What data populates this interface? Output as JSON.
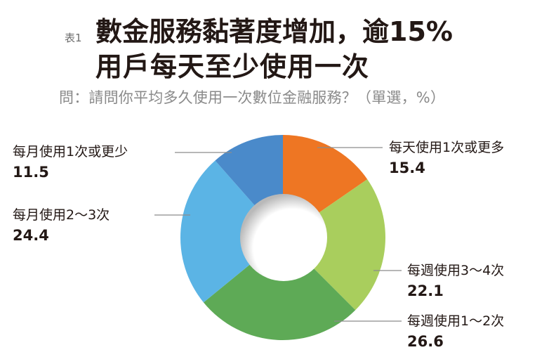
{
  "header": {
    "table_tag": "表1",
    "title_line1": "數金服務黏著度增加，逾15%",
    "title_line2": "用戶每天至少使用一次",
    "subtitle": "問：請問你平均多久使用一次數位金融服務？（單選，%）"
  },
  "chart_data": {
    "type": "pie",
    "variant": "donut",
    "title": "數金服務黏著度增加，逾15%用戶每天至少使用一次",
    "subtitle": "問：請問你平均多久使用一次數位金融服務？（單選，%）",
    "unit": "%",
    "start_angle": "12 o'clock, clockwise",
    "slices": [
      {
        "label": "每天使用1次或更多",
        "value": 15.4,
        "color": "#EE7623"
      },
      {
        "label": "每週使用3～4次",
        "value": 22.1,
        "color": "#A9CE5D"
      },
      {
        "label": "每週使用1～2次",
        "value": 26.6,
        "color": "#5EAA56"
      },
      {
        "label": "每月使用2～3次",
        "value": 24.4,
        "color": "#5BB4E5"
      },
      {
        "label": "每月使用1次或更少",
        "value": 11.5,
        "color": "#4A8ACA"
      }
    ],
    "legend": "callout labels with leader lines"
  },
  "labels": {
    "daily": {
      "text": "每天使用1次或更多",
      "value": "15.4"
    },
    "weekly_3_4": {
      "text": "每週使用3～4次",
      "value": "22.1"
    },
    "weekly_1_2": {
      "text": "每週使用1～2次",
      "value": "26.6"
    },
    "monthly_2_3": {
      "text": "每月使用2～3次",
      "value": "24.4"
    },
    "monthly_1_less": {
      "text": "每月使用1次或更少",
      "value": "11.5"
    }
  }
}
